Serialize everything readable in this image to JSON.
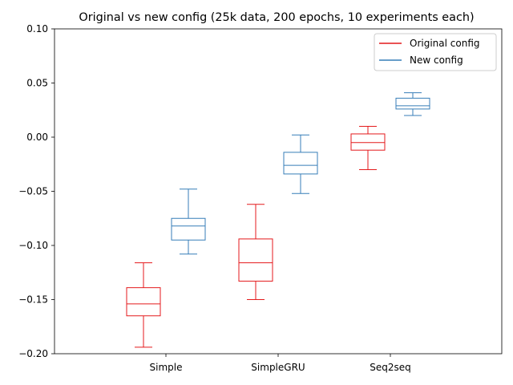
{
  "chart_data": {
    "type": "box",
    "title": "Original vs new config (25k data, 200 epochs, 10 experiments each)",
    "xlabel": "",
    "ylabel": "",
    "categories": [
      "Simple",
      "SimpleGRU",
      "Seq2seq"
    ],
    "ylim": [
      -0.2,
      0.1
    ],
    "yticks": [
      "0.10",
      "0.05",
      "0.00",
      "−0.05",
      "−0.10",
      "−0.15",
      "−0.20"
    ],
    "ytick_values": [
      0.1,
      0.05,
      0.0,
      -0.05,
      -0.1,
      -0.15,
      -0.2
    ],
    "grid": false,
    "legend_position": "top-right",
    "series": [
      {
        "name": "Original config",
        "color": "#e41a1c",
        "boxes": [
          {
            "category": "Simple",
            "whisker_low": -0.194,
            "q1": -0.165,
            "median": -0.154,
            "q3": -0.139,
            "whisker_high": -0.116
          },
          {
            "category": "SimpleGRU",
            "whisker_low": -0.15,
            "q1": -0.133,
            "median": -0.116,
            "q3": -0.094,
            "whisker_high": -0.062
          },
          {
            "category": "Seq2seq",
            "whisker_low": -0.03,
            "q1": -0.012,
            "median": -0.005,
            "q3": 0.003,
            "whisker_high": 0.01
          }
        ]
      },
      {
        "name": "New config",
        "color": "#377eb8",
        "boxes": [
          {
            "category": "Simple",
            "whisker_low": -0.108,
            "q1": -0.095,
            "median": -0.082,
            "q3": -0.075,
            "whisker_high": -0.048
          },
          {
            "category": "SimpleGRU",
            "whisker_low": -0.052,
            "q1": -0.034,
            "median": -0.026,
            "q3": -0.014,
            "whisker_high": 0.002
          },
          {
            "category": "Seq2seq",
            "whisker_low": 0.02,
            "q1": 0.026,
            "median": 0.029,
            "q3": 0.036,
            "whisker_high": 0.041
          }
        ]
      }
    ]
  }
}
